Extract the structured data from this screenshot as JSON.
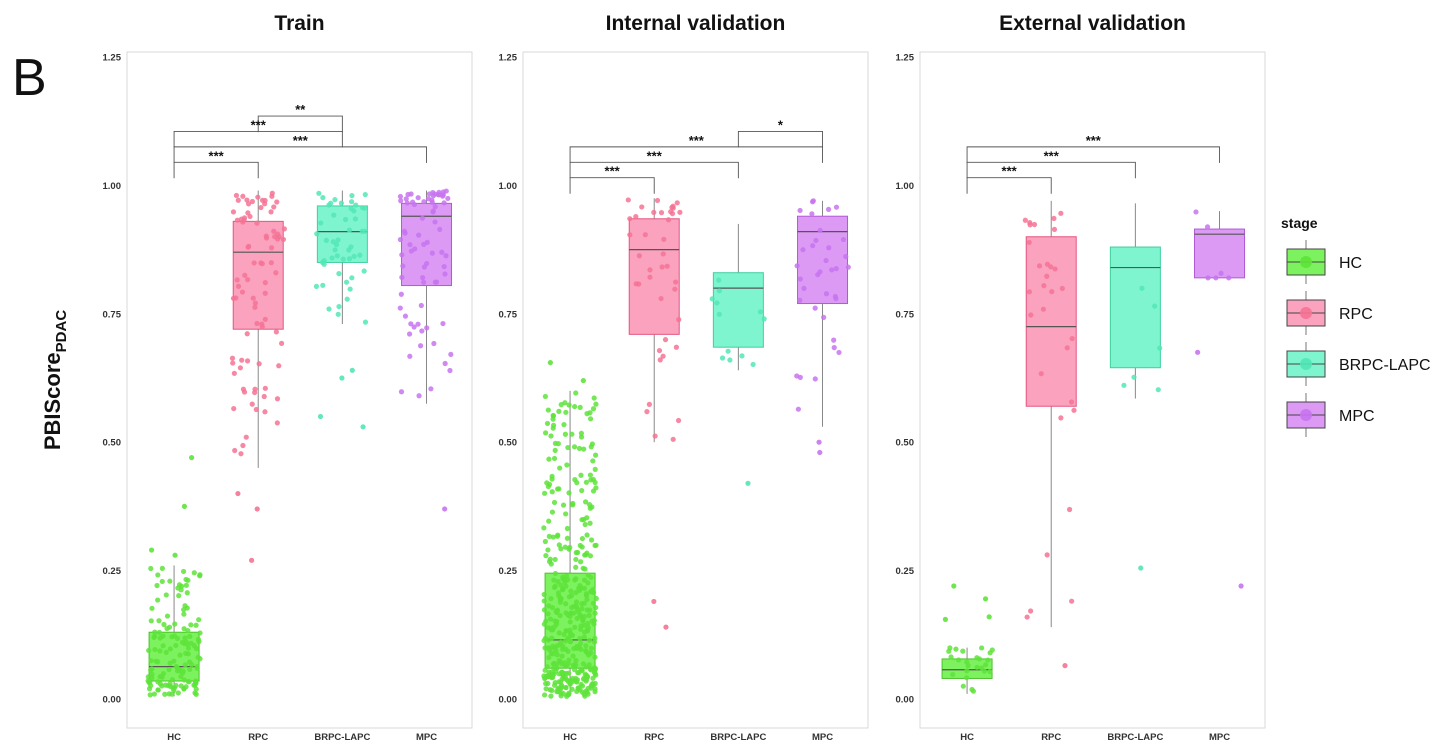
{
  "figure": {
    "panel_letter": "B",
    "ylabel_main": "PBIScore",
    "ylabel_sub": "PDAC"
  },
  "legend": {
    "title": "stage",
    "items": [
      {
        "label": "HC",
        "fill": "#7df25f",
        "stroke": "#4cc22e",
        "dot": "#5ee33a"
      },
      {
        "label": "RPC",
        "fill": "#fba2bf",
        "stroke": "#e4557f",
        "dot": "#f47394"
      },
      {
        "label": "BRPC-LAPC",
        "fill": "#7ff5cf",
        "stroke": "#3fcf9f",
        "dot": "#52e6b6"
      },
      {
        "label": "MPC",
        "fill": "#dc9af5",
        "stroke": "#b25ad6",
        "dot": "#c774ee"
      }
    ]
  },
  "chart_data": [
    {
      "type": "box",
      "title": "Train",
      "categories": [
        "HC",
        "RPC",
        "BRPC-LAPC",
        "MPC"
      ],
      "ylim": [
        0,
        1.25
      ],
      "yticks": [
        "0.00",
        "0.25",
        "0.50",
        "0.75",
        "1.00",
        "1.25"
      ],
      "boxes": [
        {
          "q1": 0.035,
          "median": 0.063,
          "q3": 0.13,
          "whisker_low": 0.005,
          "whisker_high": 0.26,
          "n": 140
        },
        {
          "q1": 0.72,
          "median": 0.87,
          "q3": 0.93,
          "whisker_low": 0.45,
          "whisker_high": 0.99,
          "n": 85
        },
        {
          "q1": 0.85,
          "median": 0.91,
          "q3": 0.96,
          "whisker_low": 0.73,
          "whisker_high": 0.99,
          "n": 50
        },
        {
          "q1": 0.805,
          "median": 0.94,
          "q3": 0.965,
          "whisker_low": 0.575,
          "whisker_high": 0.99,
          "n": 75
        }
      ],
      "outliers": [
        {
          "cat": 0,
          "y": 0.47
        },
        {
          "cat": 0,
          "y": 0.375
        },
        {
          "cat": 0,
          "y": 0.29
        },
        {
          "cat": 0,
          "y": 0.28
        },
        {
          "cat": 1,
          "y": 0.4
        },
        {
          "cat": 1,
          "y": 0.37
        },
        {
          "cat": 1,
          "y": 0.27
        },
        {
          "cat": 2,
          "y": 0.64
        },
        {
          "cat": 2,
          "y": 0.625
        },
        {
          "cat": 2,
          "y": 0.55
        },
        {
          "cat": 2,
          "y": 0.53
        },
        {
          "cat": 3,
          "y": 0.37
        }
      ],
      "comparisons": [
        {
          "from": 1,
          "to": 2,
          "label": "**",
          "y": 1.135
        },
        {
          "from": 0,
          "to": 2,
          "label": "***",
          "y": 1.105
        },
        {
          "from": 0,
          "to": 3,
          "label": "***",
          "y": 1.075
        },
        {
          "from": 0,
          "to": 1,
          "label": "***",
          "y": 1.045
        }
      ]
    },
    {
      "type": "box",
      "title": "Internal validation",
      "categories": [
        "HC",
        "RPC",
        "BRPC-LAPC",
        "MPC"
      ],
      "ylim": [
        0,
        1.25
      ],
      "yticks": [
        "0.00",
        "0.25",
        "0.50",
        "0.75",
        "1.00",
        "1.25"
      ],
      "boxes": [
        {
          "q1": 0.06,
          "median": 0.115,
          "q3": 0.245,
          "whisker_low": 0.005,
          "whisker_high": 0.6,
          "n": 420
        },
        {
          "q1": 0.71,
          "median": 0.875,
          "q3": 0.935,
          "whisker_low": 0.5,
          "whisker_high": 0.975,
          "n": 40
        },
        {
          "q1": 0.685,
          "median": 0.8,
          "q3": 0.83,
          "whisker_low": 0.64,
          "whisker_high": 0.925,
          "n": 12
        },
        {
          "q1": 0.77,
          "median": 0.91,
          "q3": 0.94,
          "whisker_low": 0.53,
          "whisker_high": 0.97,
          "n": 35
        }
      ],
      "outliers": [
        {
          "cat": 0,
          "y": 0.655
        },
        {
          "cat": 0,
          "y": 0.62
        },
        {
          "cat": 1,
          "y": 0.19
        },
        {
          "cat": 1,
          "y": 0.14
        },
        {
          "cat": 2,
          "y": 0.42
        },
        {
          "cat": 3,
          "y": 0.5
        },
        {
          "cat": 3,
          "y": 0.48
        }
      ],
      "comparisons": [
        {
          "from": 2,
          "to": 3,
          "label": "*",
          "y": 1.105
        },
        {
          "from": 0,
          "to": 3,
          "label": "***",
          "y": 1.075
        },
        {
          "from": 0,
          "to": 2,
          "label": "***",
          "y": 1.045
        },
        {
          "from": 0,
          "to": 1,
          "label": "***",
          "y": 1.015
        }
      ]
    },
    {
      "type": "box",
      "title": "External validation",
      "categories": [
        "HC",
        "RPC",
        "BRPC-LAPC",
        "MPC"
      ],
      "ylim": [
        0,
        1.25
      ],
      "yticks": [
        "0.00",
        "0.25",
        "0.50",
        "0.75",
        "1.00",
        "1.25"
      ],
      "boxes": [
        {
          "q1": 0.04,
          "median": 0.057,
          "q3": 0.078,
          "whisker_low": 0.01,
          "whisker_high": 0.1,
          "n": 25
        },
        {
          "q1": 0.57,
          "median": 0.725,
          "q3": 0.9,
          "whisker_low": 0.14,
          "whisker_high": 0.97,
          "n": 30
        },
        {
          "q1": 0.645,
          "median": 0.84,
          "q3": 0.88,
          "whisker_low": 0.585,
          "whisker_high": 0.965,
          "n": 6
        },
        {
          "q1": 0.82,
          "median": 0.905,
          "q3": 0.915,
          "whisker_low": 0.82,
          "whisker_high": 0.95,
          "n": 6
        }
      ],
      "outliers": [
        {
          "cat": 0,
          "y": 0.22
        },
        {
          "cat": 0,
          "y": 0.195
        },
        {
          "cat": 0,
          "y": 0.16
        },
        {
          "cat": 0,
          "y": 0.155
        },
        {
          "cat": 1,
          "y": 0.065
        },
        {
          "cat": 2,
          "y": 0.255
        },
        {
          "cat": 3,
          "y": 0.675
        },
        {
          "cat": 3,
          "y": 0.22
        }
      ],
      "comparisons": [
        {
          "from": 0,
          "to": 3,
          "label": "***",
          "y": 1.075
        },
        {
          "from": 0,
          "to": 2,
          "label": "***",
          "y": 1.045
        },
        {
          "from": 0,
          "to": 1,
          "label": "***",
          "y": 1.015
        }
      ]
    }
  ]
}
